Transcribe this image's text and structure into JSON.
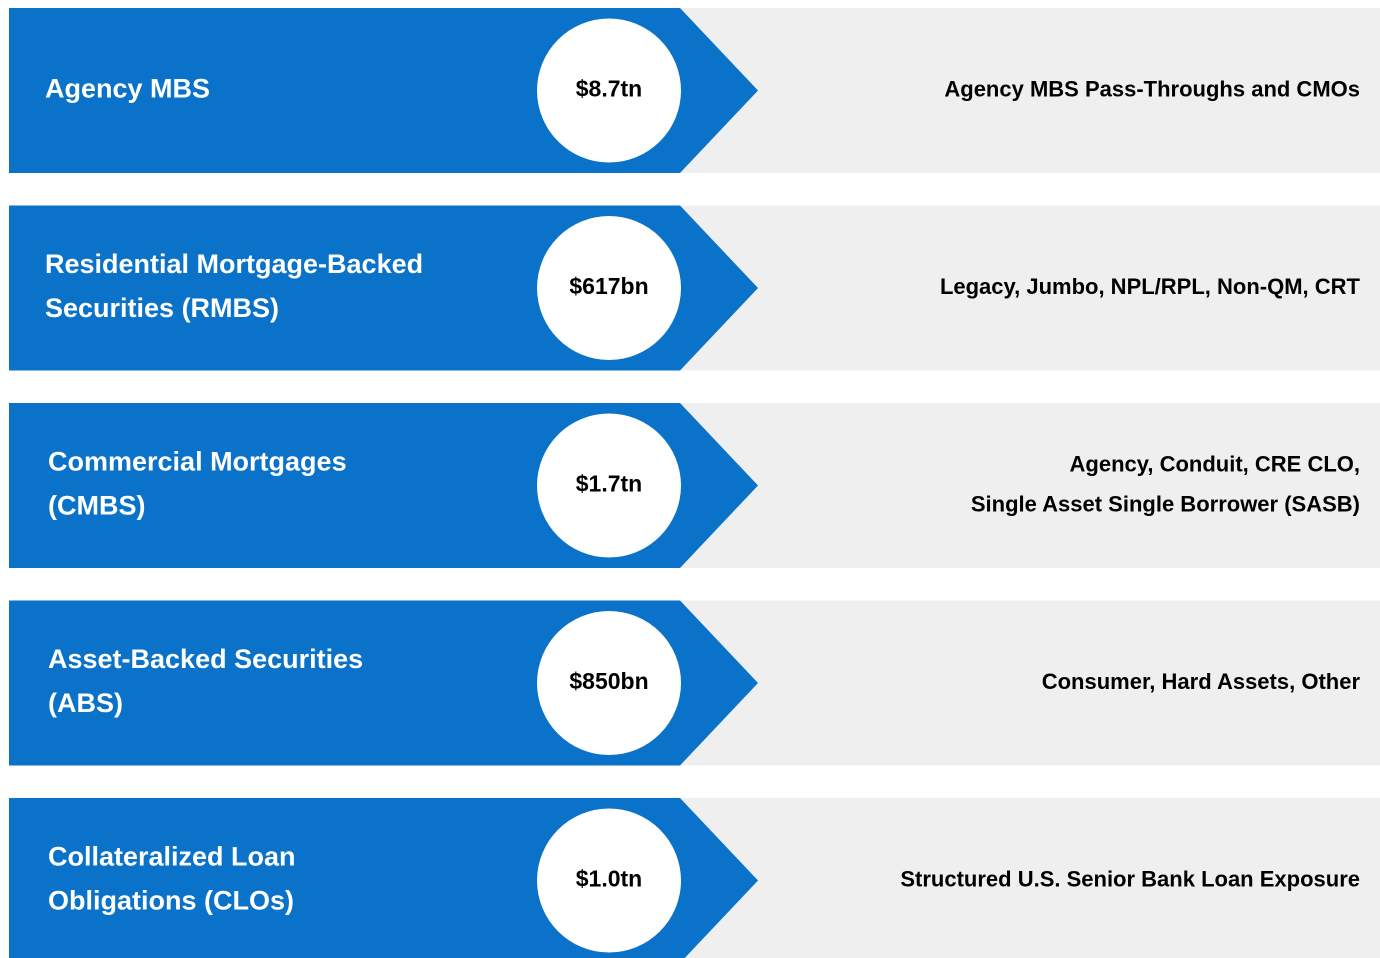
{
  "rows": [
    {
      "label": [
        "Agency MBS"
      ],
      "amount": "$8.7tn",
      "detail": [
        "Agency MBS Pass-Throughs and CMOs"
      ]
    },
    {
      "label": [
        "Residential Mortgage-Backed",
        "Securities (RMBS)"
      ],
      "amount": "$617bn",
      "detail": [
        "Legacy, Jumbo, NPL/RPL, Non-QM, CRT"
      ]
    },
    {
      "label": [
        "Commercial Mortgages",
        "(CMBS)"
      ],
      "amount": "$1.7tn",
      "detail": [
        "Agency, Conduit, CRE CLO,",
        "Single Asset Single Borrower (SASB)"
      ]
    },
    {
      "label": [
        "Asset-Backed Securities",
        "(ABS)"
      ],
      "amount": "$850bn",
      "detail": [
        "Consumer, Hard Assets, Other"
      ]
    },
    {
      "label": [
        "Collateralized Loan",
        "Obligations (CLOs)"
      ],
      "amount": "$1.0tn",
      "detail": [
        "Structured U.S. Senior Bank Loan Exposure"
      ]
    }
  ]
}
